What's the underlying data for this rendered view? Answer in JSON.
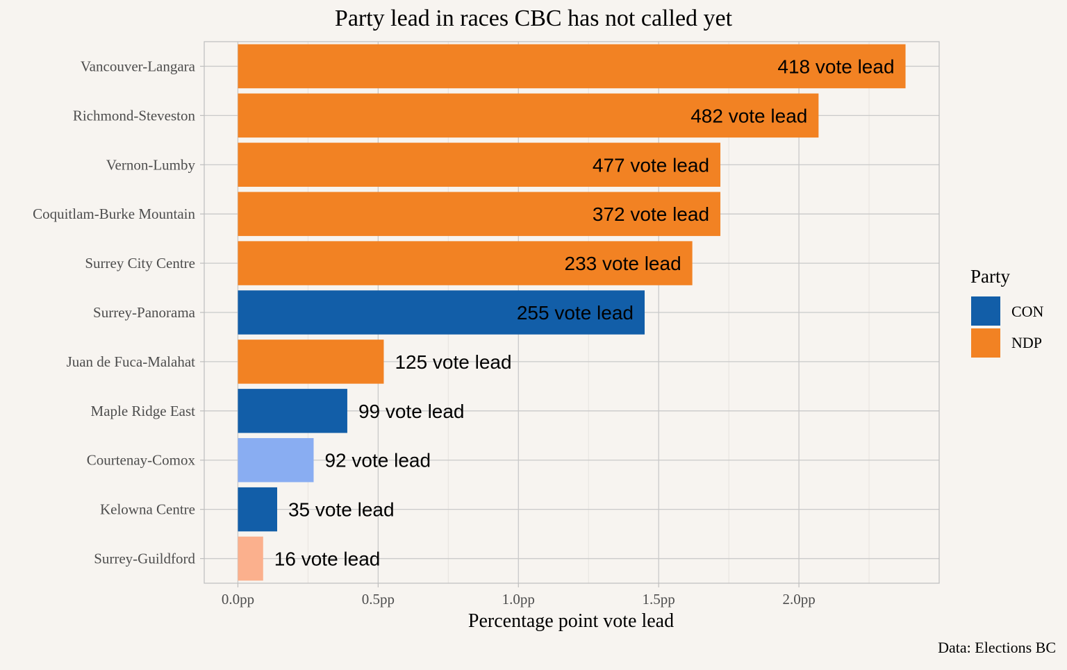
{
  "chart_data": {
    "type": "bar",
    "orientation": "horizontal",
    "title": "Party lead in races CBC has not called yet",
    "xlabel": "Percentage point vote lead",
    "ylabel": "",
    "caption": "Data: Elections BC",
    "xlim": [
      -0.12,
      2.5
    ],
    "x_ticks": [
      0,
      0.5,
      1.0,
      1.5,
      2.0
    ],
    "x_tick_labels": [
      "0.0pp",
      "0.5pp",
      "1.0pp",
      "1.5pp",
      "2.0pp"
    ],
    "grid": true,
    "legend": {
      "title": "Party",
      "placement": "right",
      "entries": [
        {
          "label": "CON",
          "color": "#125ea8"
        },
        {
          "label": "NDP",
          "color": "#f28223"
        }
      ]
    },
    "colors": {
      "CON": "#125ea8",
      "NDP": "#f28223",
      "CON_light": "#89adf2",
      "NDP_light": "#fbb08d"
    },
    "categories": [
      "Vancouver-Langara",
      "Richmond-Steveston",
      "Vernon-Lumby",
      "Coquitlam-Burke Mountain",
      "Surrey City Centre",
      "Surrey-Panorama",
      "Juan de Fuca-Malahat",
      "Maple Ridge East",
      "Courtenay-Comox",
      "Kelowna Centre",
      "Surrey-Guildford"
    ],
    "values": [
      2.38,
      2.07,
      1.72,
      1.72,
      1.62,
      1.45,
      0.52,
      0.39,
      0.27,
      0.14,
      0.09
    ],
    "color_keys": [
      "NDP",
      "NDP",
      "NDP",
      "NDP",
      "NDP",
      "CON",
      "NDP",
      "CON",
      "CON_light",
      "CON",
      "NDP_light"
    ],
    "labels": [
      "418 vote lead",
      "482 vote lead",
      "477 vote lead",
      "372 vote lead",
      "233 vote lead",
      "255 vote lead",
      "125 vote lead",
      "99 vote lead",
      "92 vote lead",
      "35 vote lead",
      "16 vote lead"
    ]
  }
}
